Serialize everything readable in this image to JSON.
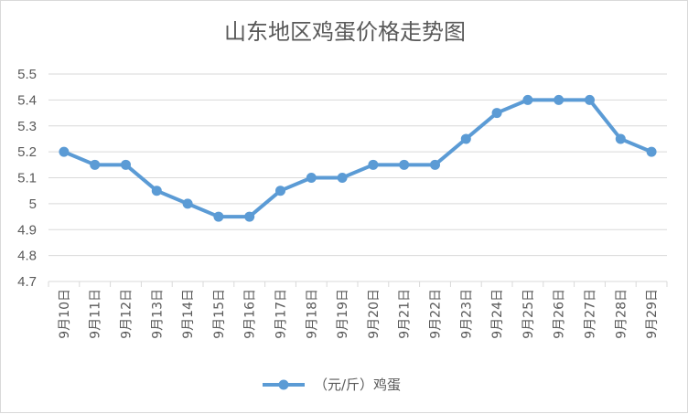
{
  "chart_data": {
    "type": "line",
    "title": "山东地区鸡蛋价格走势图",
    "categories": [
      "9月10日",
      "9月11日",
      "9月12日",
      "9月13日",
      "9月14日",
      "9月15日",
      "9月16日",
      "9月17日",
      "9月18日",
      "9月19日",
      "9月20日",
      "9月21日",
      "9月22日",
      "9月23日",
      "9月24日",
      "9月25日",
      "9月26日",
      "9月27日",
      "9月28日",
      "9月29日"
    ],
    "series": [
      {
        "name": "（元/斤）鸡蛋",
        "values": [
          5.2,
          5.15,
          5.15,
          5.05,
          5.0,
          4.95,
          4.95,
          5.05,
          5.1,
          5.1,
          5.15,
          5.15,
          5.15,
          5.25,
          5.35,
          5.4,
          5.4,
          5.4,
          5.25,
          5.2
        ]
      }
    ],
    "ylim": [
      4.7,
      5.5
    ],
    "yticks": [
      "4.7",
      "4.8",
      "4.9",
      "5",
      "5.1",
      "5.2",
      "5.3",
      "5.4",
      "5.5"
    ],
    "grid": true,
    "legend": "bottom",
    "colors": {
      "series": "#5b9bd5",
      "grid": "#d9d9d9",
      "text": "#595959"
    }
  }
}
